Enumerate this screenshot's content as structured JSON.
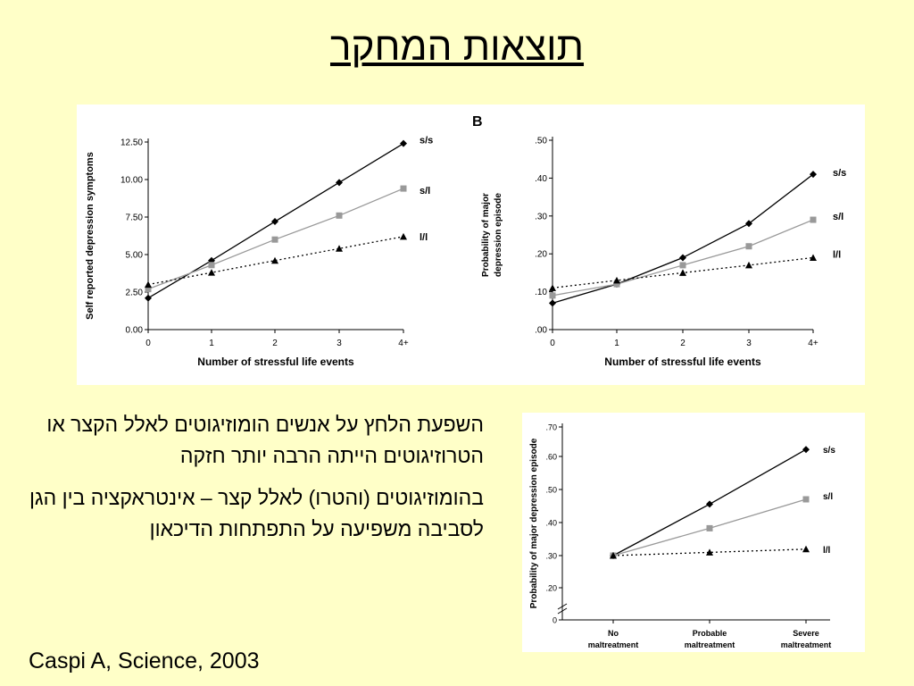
{
  "slide": {
    "title": "תוצאות המחקר",
    "bullets": [
      "השפעת הלחץ על אנשים הומוזיגוטים לאלל הקצר או הטרוזיגוטים הייתה הרבה יותר חזקה",
      "בהומוזיגוטים (והטרו) לאלל קצר – אינטראקציה בין הגן לסביבה משפיעה על התפתחות הדיכאון"
    ],
    "citation": "Caspi A, Science, 2003"
  },
  "chart_data": [
    {
      "type": "line",
      "panel_label": "",
      "xlabel": "Number of stressful life events",
      "ylabel": "Self reported depression symptoms",
      "x_ticks": [
        "0",
        "1",
        "2",
        "3",
        "4+"
      ],
      "y_ticks": [
        "0.00",
        "2.50",
        "5.00",
        "7.50",
        "10.00",
        "12.50"
      ],
      "ylim": [
        0,
        12.5
      ],
      "grid": false,
      "legend": "right-inline",
      "series": [
        {
          "name": "s/s",
          "values": [
            2.1,
            4.6,
            7.2,
            9.8,
            12.4
          ],
          "color": "#000000",
          "marker": "diamond",
          "dash": "solid"
        },
        {
          "name": "s/l",
          "values": [
            2.7,
            4.3,
            6.0,
            7.6,
            9.4
          ],
          "color": "#999999",
          "marker": "square",
          "dash": "solid"
        },
        {
          "name": "l/l",
          "values": [
            3.0,
            3.8,
            4.6,
            5.4,
            6.2
          ],
          "color": "#000000",
          "marker": "triangle",
          "dash": "dotted"
        }
      ]
    },
    {
      "type": "line",
      "panel_label": "B",
      "xlabel": "Number of stressful life events",
      "ylabel": "Probability of major depression episode",
      "x_ticks": [
        "0",
        "1",
        "2",
        "3",
        "4+"
      ],
      "y_ticks": [
        ".00",
        ".10",
        ".20",
        ".30",
        ".40",
        ".50"
      ],
      "ylim": [
        0,
        0.5
      ],
      "grid": false,
      "legend": "right-inline",
      "series": [
        {
          "name": "s/s",
          "values": [
            0.07,
            0.12,
            0.19,
            0.28,
            0.41
          ],
          "color": "#000000",
          "marker": "diamond",
          "dash": "solid"
        },
        {
          "name": "s/l",
          "values": [
            0.09,
            0.12,
            0.17,
            0.22,
            0.29
          ],
          "color": "#999999",
          "marker": "square",
          "dash": "solid"
        },
        {
          "name": "l/l",
          "values": [
            0.11,
            0.13,
            0.15,
            0.17,
            0.19
          ],
          "color": "#000000",
          "marker": "triangle",
          "dash": "dotted"
        }
      ]
    },
    {
      "type": "line",
      "panel_label": "",
      "xlabel": "",
      "ylabel": "Probability of major depression episode",
      "x_ticks": [
        "No maltreatment",
        "Probable maltreatment",
        "Severe maltreatment"
      ],
      "y_ticks": [
        "0",
        ".20",
        ".30",
        ".40",
        ".50",
        ".60",
        ".70"
      ],
      "ylim": [
        0.1,
        0.7
      ],
      "axis_break": true,
      "grid": false,
      "legend": "right-inline",
      "series": [
        {
          "name": "s/s",
          "values": [
            0.3,
            0.46,
            0.63
          ],
          "color": "#000000",
          "marker": "diamond",
          "dash": "solid"
        },
        {
          "name": "s/l",
          "values": [
            0.3,
            0.385,
            0.475
          ],
          "color": "#999999",
          "marker": "square",
          "dash": "solid"
        },
        {
          "name": "l/l",
          "values": [
            0.3,
            0.31,
            0.32
          ],
          "color": "#000000",
          "marker": "triangle",
          "dash": "dotted"
        }
      ]
    }
  ]
}
